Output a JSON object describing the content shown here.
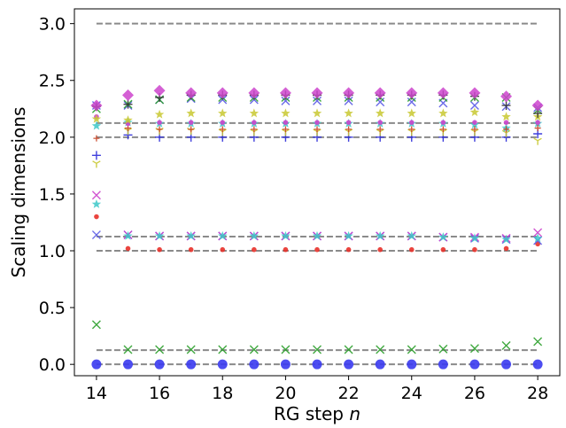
{
  "chart_data": {
    "type": "scatter",
    "title": "",
    "xlabel_main": "RG step",
    "xlabel_var": "n",
    "ylabel": "Scaling dimensions",
    "xlim": [
      13.3,
      28.7
    ],
    "ylim": [
      -0.1,
      3.13
    ],
    "xticks": [
      14,
      16,
      18,
      20,
      22,
      24,
      26,
      28
    ],
    "xtick_labels": [
      "14",
      "16",
      "18",
      "20",
      "22",
      "24",
      "26",
      "28"
    ],
    "yticks": [
      0.0,
      0.5,
      1.0,
      1.5,
      2.0,
      2.5,
      3.0
    ],
    "ytick_labels": [
      "0.0",
      "0.5",
      "1.0",
      "1.5",
      "2.0",
      "2.5",
      "3.0"
    ],
    "grid": false,
    "legend": "none",
    "x": [
      14,
      15,
      16,
      17,
      18,
      19,
      20,
      21,
      22,
      23,
      24,
      25,
      26,
      27,
      28
    ],
    "reference_lines": {
      "values": [
        0,
        0.125,
        1.0,
        1.125,
        2.0,
        2.125,
        3.0
      ],
      "style": "dashed",
      "color": "#8a8a8a"
    },
    "series": [
      {
        "marker": "circle-large",
        "color": "#3a3af0",
        "values": [
          0.0,
          0.0,
          0.0,
          0.0,
          0.0,
          0.0,
          0.0,
          0.0,
          0.0,
          0.0,
          0.0,
          0.0,
          0.0,
          0.0,
          0.0
        ]
      },
      {
        "marker": "x",
        "color": "#2ca02c",
        "values": [
          0.35,
          0.13,
          0.13,
          0.13,
          0.13,
          0.13,
          0.13,
          0.13,
          0.13,
          0.13,
          0.13,
          0.135,
          0.14,
          0.165,
          0.2
        ]
      },
      {
        "marker": "circle-small",
        "color": "#e8312a",
        "values": [
          1.3,
          1.02,
          1.01,
          1.01,
          1.01,
          1.01,
          1.01,
          1.01,
          1.01,
          1.01,
          1.01,
          1.01,
          1.01,
          1.02,
          1.06
        ]
      },
      {
        "marker": "x",
        "color": "#5a5ae6",
        "values": [
          1.14,
          1.14,
          1.13,
          1.13,
          1.13,
          1.13,
          1.13,
          1.13,
          1.13,
          1.13,
          1.13,
          1.12,
          1.11,
          1.1,
          1.09
        ]
      },
      {
        "marker": "x",
        "color": "#cc44cc",
        "values": [
          1.49,
          1.14,
          1.13,
          1.13,
          1.13,
          1.13,
          1.13,
          1.13,
          1.13,
          1.13,
          1.13,
          1.12,
          1.12,
          1.11,
          1.16
        ]
      },
      {
        "marker": "star",
        "color": "#3cc8c8",
        "values": [
          1.41,
          1.13,
          1.13,
          1.13,
          1.13,
          1.13,
          1.13,
          1.13,
          1.13,
          1.13,
          1.13,
          1.12,
          1.11,
          1.1,
          1.11
        ]
      },
      {
        "marker": "plus",
        "color": "#2a2ad8",
        "values": [
          1.84,
          2.02,
          2.0,
          2.0,
          2.0,
          2.0,
          2.0,
          2.0,
          2.0,
          2.0,
          2.0,
          2.0,
          2.0,
          2.0,
          2.03
        ]
      },
      {
        "marker": "tri",
        "color": "#c8c830",
        "values": [
          1.77,
          2.06,
          2.06,
          2.06,
          2.05,
          2.05,
          2.05,
          2.05,
          2.05,
          2.05,
          2.05,
          2.05,
          2.05,
          2.04,
          1.97
        ]
      },
      {
        "marker": "star",
        "color": "#3cc8c8",
        "values": [
          2.1,
          2.13,
          2.12,
          2.12,
          2.12,
          2.12,
          2.12,
          2.12,
          2.12,
          2.12,
          2.12,
          2.12,
          2.11,
          2.08,
          2.12
        ]
      },
      {
        "marker": "plus-small",
        "color": "#c84020",
        "values": [
          1.99,
          2.08,
          2.07,
          2.07,
          2.07,
          2.07,
          2.07,
          2.07,
          2.07,
          2.07,
          2.07,
          2.07,
          2.07,
          2.07,
          2.08
        ]
      },
      {
        "marker": "circle-small",
        "color": "#cc44cc",
        "values": [
          2.18,
          2.12,
          2.13,
          2.13,
          2.13,
          2.13,
          2.13,
          2.13,
          2.13,
          2.13,
          2.13,
          2.13,
          2.13,
          2.13,
          2.13
        ]
      },
      {
        "marker": "star",
        "color": "#c8c830",
        "values": [
          2.16,
          2.15,
          2.2,
          2.21,
          2.21,
          2.21,
          2.21,
          2.21,
          2.21,
          2.21,
          2.21,
          2.21,
          2.22,
          2.18,
          2.18
        ]
      },
      {
        "marker": "x",
        "color": "#5a5ae6",
        "values": [
          2.28,
          2.28,
          2.33,
          2.34,
          2.33,
          2.33,
          2.32,
          2.32,
          2.32,
          2.31,
          2.31,
          2.3,
          2.28,
          2.27,
          2.26
        ]
      },
      {
        "marker": "x",
        "color": "#2ca02c",
        "values": [
          2.25,
          2.29,
          2.33,
          2.35,
          2.35,
          2.35,
          2.35,
          2.35,
          2.35,
          2.35,
          2.35,
          2.35,
          2.35,
          2.35,
          2.24
        ]
      },
      {
        "marker": "plus",
        "color": "#333333",
        "values": [
          2.27,
          2.29,
          2.35,
          2.37,
          2.37,
          2.37,
          2.37,
          2.37,
          2.37,
          2.37,
          2.37,
          2.37,
          2.36,
          2.28,
          2.21
        ]
      },
      {
        "marker": "diamond",
        "color": "#cc44cc",
        "values": [
          2.28,
          2.37,
          2.41,
          2.39,
          2.39,
          2.39,
          2.39,
          2.39,
          2.39,
          2.39,
          2.39,
          2.39,
          2.39,
          2.36,
          2.28
        ]
      }
    ]
  }
}
